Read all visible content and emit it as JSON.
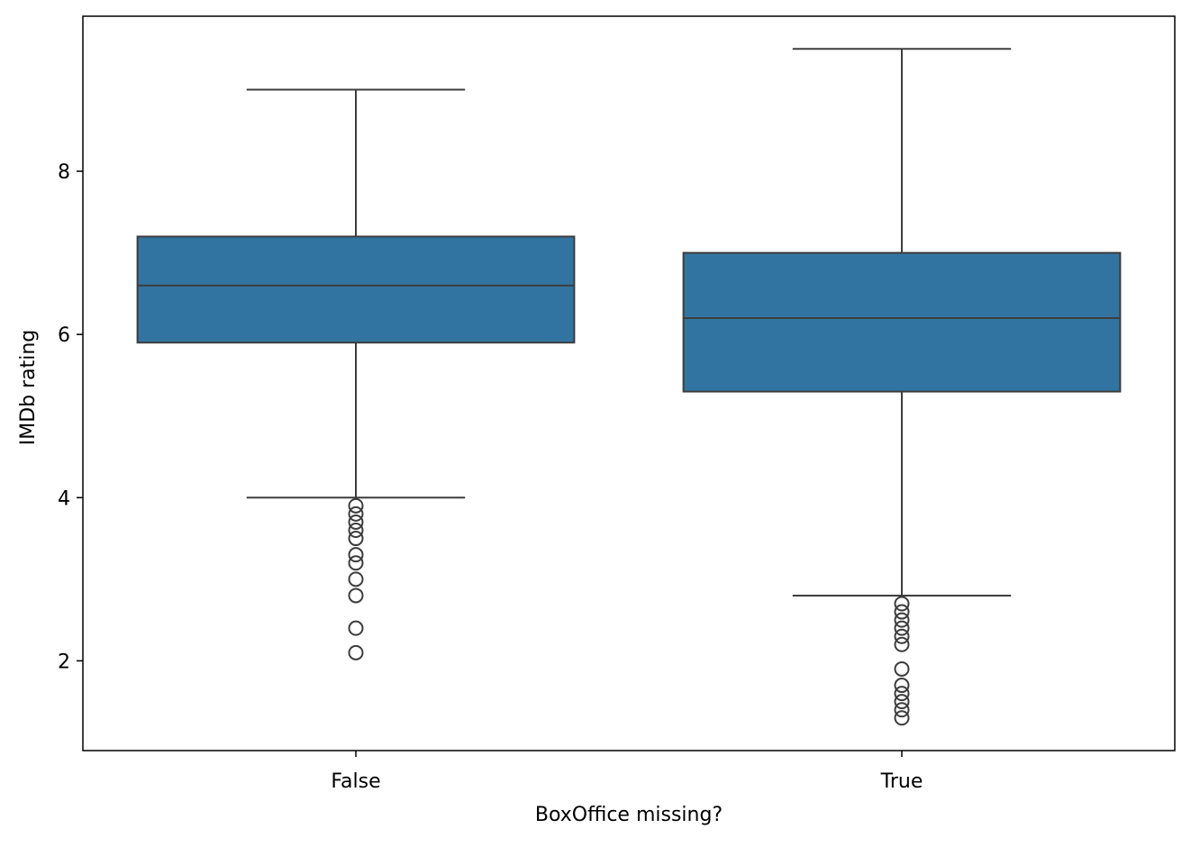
{
  "chart_data": {
    "type": "box",
    "title": "",
    "xlabel": "BoxOffice missing?",
    "ylabel": "IMDb rating",
    "categories": [
      "False",
      "True"
    ],
    "ylim": [
      0.9,
      9.9
    ],
    "yticks": [
      2,
      4,
      6,
      8
    ],
    "grid": false,
    "box_color": "#3274a1",
    "line_color": "#3d3d3d",
    "boxes": [
      {
        "category": "False",
        "whisker_low": 4.0,
        "q1": 5.9,
        "median": 6.6,
        "q3": 7.2,
        "whisker_high": 9.0,
        "outliers": [
          3.9,
          3.8,
          3.7,
          3.6,
          3.5,
          3.3,
          3.2,
          3.0,
          2.8,
          2.4,
          2.1
        ]
      },
      {
        "category": "True",
        "whisker_low": 2.8,
        "q1": 5.3,
        "median": 6.2,
        "q3": 7.0,
        "whisker_high": 9.5,
        "outliers": [
          2.7,
          2.6,
          2.5,
          2.4,
          2.3,
          2.2,
          1.9,
          1.7,
          1.6,
          1.5,
          1.4,
          1.3
        ]
      }
    ]
  }
}
